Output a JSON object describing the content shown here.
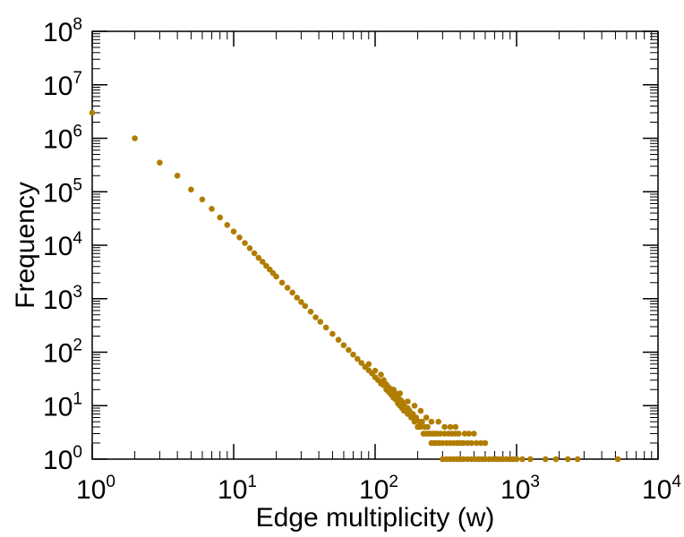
{
  "chart_data": {
    "type": "scatter",
    "title": "",
    "xlabel": "Edge multiplicity (w)",
    "ylabel": "Frequency",
    "x_scale": "log",
    "y_scale": "log",
    "xlim": [
      1,
      10000
    ],
    "ylim": [
      1,
      100000000
    ],
    "grid": false,
    "legend": "none",
    "x_ticks": [
      {
        "base": "10",
        "exp": "0",
        "value": 1
      },
      {
        "base": "10",
        "exp": "1",
        "value": 10
      },
      {
        "base": "10",
        "exp": "2",
        "value": 100
      },
      {
        "base": "10",
        "exp": "3",
        "value": 1000
      },
      {
        "base": "10",
        "exp": "4",
        "value": 10000
      }
    ],
    "y_ticks": [
      {
        "base": "10",
        "exp": "0",
        "value": 1
      },
      {
        "base": "10",
        "exp": "1",
        "value": 10
      },
      {
        "base": "10",
        "exp": "2",
        "value": 100
      },
      {
        "base": "10",
        "exp": "3",
        "value": 1000
      },
      {
        "base": "10",
        "exp": "4",
        "value": 10000
      },
      {
        "base": "10",
        "exp": "5",
        "value": 100000
      },
      {
        "base": "10",
        "exp": "6",
        "value": 1000000
      },
      {
        "base": "10",
        "exp": "7",
        "value": 10000000
      },
      {
        "base": "10",
        "exp": "8",
        "value": 100000000
      }
    ],
    "marker_color": "#b07d00",
    "series": [
      {
        "points": [
          [
            1,
            3000000
          ],
          [
            2,
            1000000
          ],
          [
            3,
            350000
          ],
          [
            4,
            200000
          ],
          [
            5,
            110000
          ],
          [
            6,
            72000
          ],
          [
            7,
            48000
          ],
          [
            8,
            33000
          ],
          [
            9,
            24000
          ],
          [
            10,
            18000
          ],
          [
            11,
            14000
          ],
          [
            12,
            11000
          ],
          [
            13,
            8800
          ],
          [
            14,
            7100
          ],
          [
            15,
            5800
          ],
          [
            16,
            4900
          ],
          [
            17,
            4100
          ],
          [
            18,
            3500
          ],
          [
            19,
            3000
          ],
          [
            20,
            2600
          ],
          [
            22,
            2000
          ],
          [
            24,
            1600
          ],
          [
            26,
            1300
          ],
          [
            28,
            1050
          ],
          [
            30,
            870
          ],
          [
            32,
            730
          ],
          [
            35,
            570
          ],
          [
            38,
            450
          ],
          [
            41,
            370
          ],
          [
            45,
            290
          ],
          [
            50,
            220
          ],
          [
            55,
            170
          ],
          [
            60,
            135
          ],
          [
            65,
            110
          ],
          [
            70,
            90
          ],
          [
            75,
            75
          ],
          [
            80,
            63
          ],
          [
            85,
            53
          ],
          [
            90,
            46
          ],
          [
            95,
            40
          ],
          [
            100,
            34
          ],
          [
            105,
            30
          ],
          [
            110,
            26
          ],
          [
            115,
            24
          ],
          [
            120,
            20
          ],
          [
            125,
            18
          ],
          [
            130,
            16
          ],
          [
            135,
            14
          ],
          [
            140,
            13
          ],
          [
            145,
            11
          ],
          [
            150,
            10
          ],
          [
            155,
            9
          ],
          [
            160,
            8
          ],
          [
            170,
            7
          ],
          [
            180,
            6
          ],
          [
            190,
            5
          ],
          [
            200,
            4
          ],
          [
            210,
            4
          ],
          [
            220,
            3
          ],
          [
            230,
            3
          ],
          [
            240,
            3
          ],
          [
            250,
            2
          ],
          [
            260,
            2
          ],
          [
            270,
            2
          ],
          [
            285,
            2
          ],
          [
            300,
            2
          ],
          [
            320,
            2
          ],
          [
            340,
            2
          ],
          [
            360,
            2
          ],
          [
            380,
            2
          ],
          [
            400,
            2
          ],
          [
            420,
            2
          ],
          [
            450,
            2
          ],
          [
            480,
            2
          ],
          [
            520,
            2
          ],
          [
            560,
            2
          ],
          [
            600,
            2
          ],
          [
            90,
            60
          ],
          [
            100,
            45
          ],
          [
            110,
            38
          ],
          [
            115,
            30
          ],
          [
            120,
            25
          ],
          [
            125,
            22
          ],
          [
            130,
            20
          ],
          [
            140,
            17
          ],
          [
            145,
            14
          ],
          [
            150,
            13
          ],
          [
            155,
            12
          ],
          [
            160,
            10
          ],
          [
            165,
            9
          ],
          [
            170,
            9
          ],
          [
            175,
            8
          ],
          [
            185,
            7
          ],
          [
            195,
            6
          ],
          [
            205,
            5
          ],
          [
            215,
            5
          ],
          [
            225,
            4
          ],
          [
            235,
            4
          ],
          [
            245,
            3
          ],
          [
            255,
            3
          ],
          [
            265,
            3
          ],
          [
            275,
            3
          ],
          [
            290,
            3
          ],
          [
            310,
            3
          ],
          [
            330,
            3
          ],
          [
            350,
            3
          ],
          [
            370,
            3
          ],
          [
            390,
            3
          ],
          [
            430,
            3
          ],
          [
            460,
            3
          ],
          [
            500,
            3
          ],
          [
            135,
            20
          ],
          [
            150,
            17
          ],
          [
            170,
            12
          ],
          [
            190,
            10
          ],
          [
            210,
            8
          ],
          [
            230,
            6
          ],
          [
            250,
            5
          ],
          [
            280,
            5
          ],
          [
            310,
            4
          ],
          [
            340,
            4
          ],
          [
            370,
            4
          ],
          [
            300,
            1
          ],
          [
            320,
            1
          ],
          [
            340,
            1
          ],
          [
            360,
            1
          ],
          [
            380,
            1
          ],
          [
            400,
            1
          ],
          [
            420,
            1
          ],
          [
            450,
            1
          ],
          [
            480,
            1
          ],
          [
            510,
            1
          ],
          [
            540,
            1
          ],
          [
            570,
            1
          ],
          [
            600,
            1
          ],
          [
            640,
            1
          ],
          [
            680,
            1
          ],
          [
            720,
            1
          ],
          [
            760,
            1
          ],
          [
            800,
            1
          ],
          [
            850,
            1
          ],
          [
            900,
            1
          ],
          [
            950,
            1
          ],
          [
            1000,
            1
          ],
          [
            1100,
            1
          ],
          [
            1250,
            1
          ],
          [
            1600,
            1
          ],
          [
            1900,
            1
          ],
          [
            2300,
            1
          ],
          [
            2700,
            1
          ],
          [
            5200,
            1
          ]
        ]
      }
    ]
  }
}
